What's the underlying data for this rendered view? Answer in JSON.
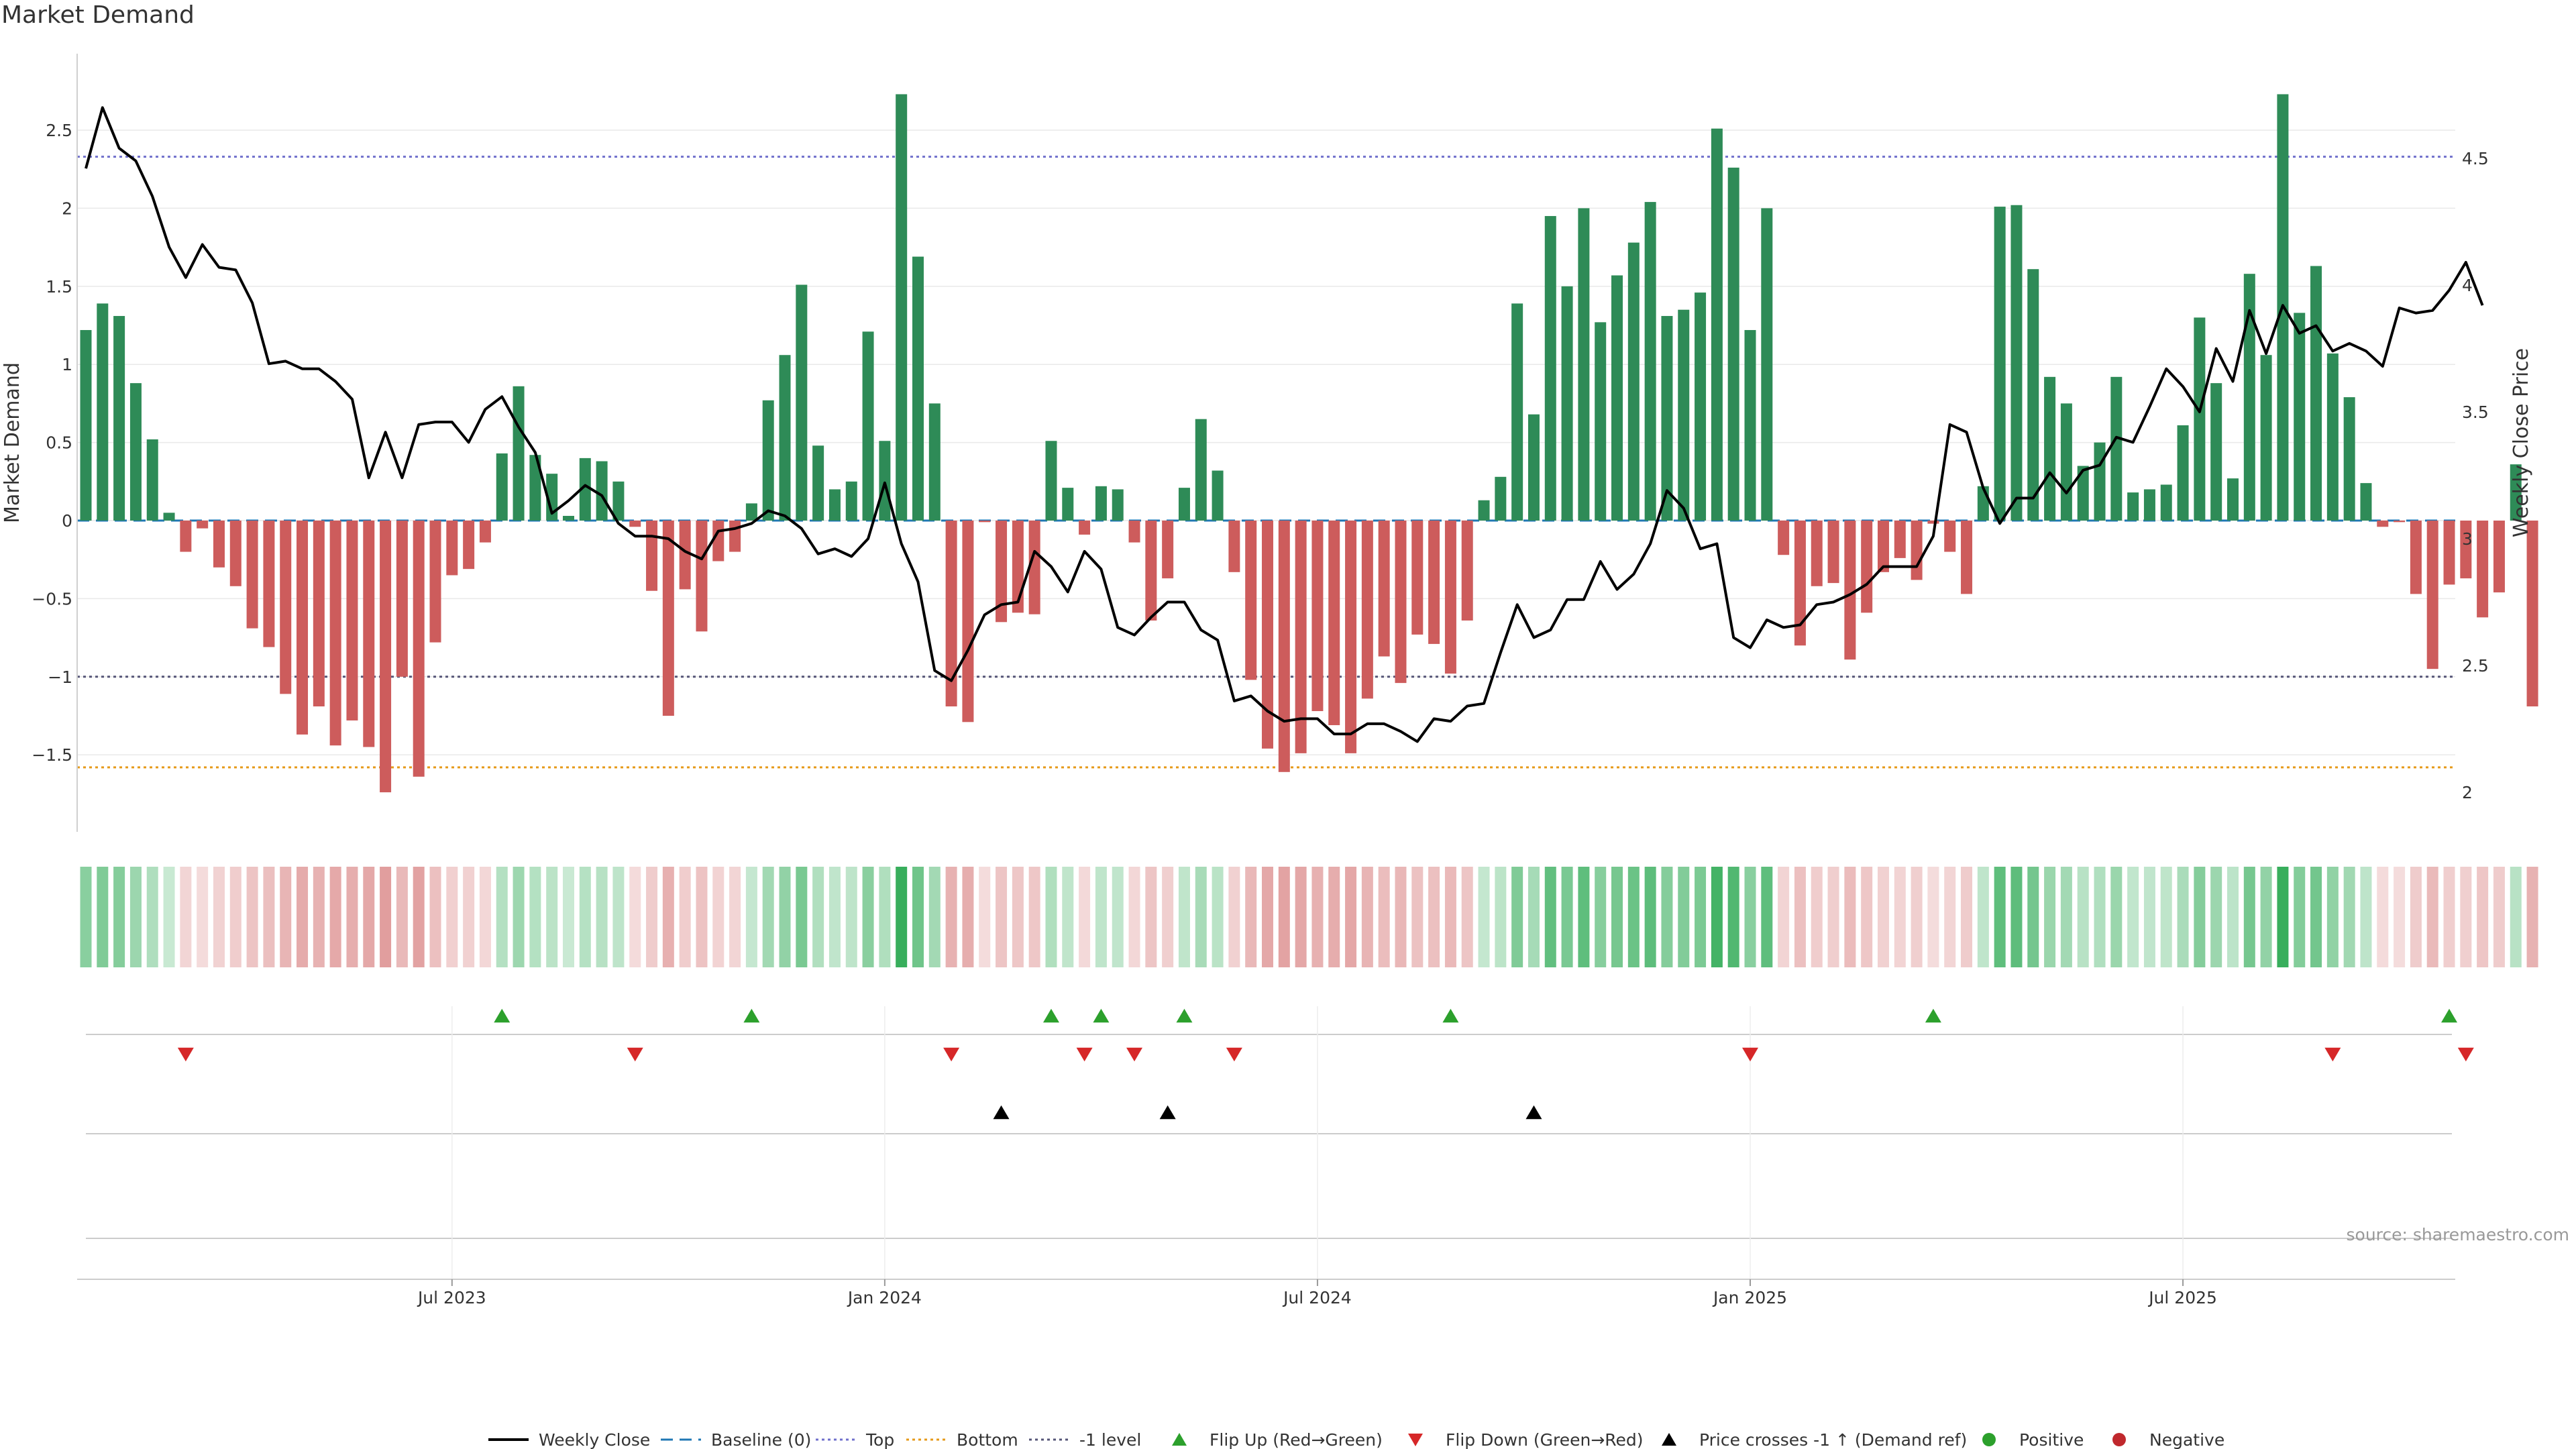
{
  "title": "Market Demand",
  "source_note": "source: sharemaestro.com",
  "colors": {
    "positive": "#2e8b57",
    "negative": "#cd5c5c",
    "price": "#000000",
    "top": "#7070cc",
    "bottom": "#e69a1a",
    "minus_one": "#555577",
    "baseline": "#1f77b4",
    "flip_up": "#2ca02c",
    "flip_down": "#d62728",
    "cross": "#000000",
    "dot_pos": "#2ca02c",
    "dot_neg": "#c0282d"
  },
  "chart_data": {
    "type": "bar",
    "title": "Market Demand",
    "ylabel": "Market Demand",
    "y2label": "Weekly Close Price",
    "ylim": [
      -2.0,
      3.0
    ],
    "y2lim": [
      1.9,
      4.9
    ],
    "yticks": [
      "2.5",
      "2",
      "1.5",
      "1",
      "0.5",
      "0",
      "−0.5",
      "−1",
      "−1.5"
    ],
    "ytick_values": [
      2.5,
      2,
      1.5,
      1,
      0.5,
      0,
      -0.5,
      -1,
      -1.5
    ],
    "y2ticks": [
      "4.5",
      "4",
      "3.5",
      "3",
      "2.5",
      "2"
    ],
    "y2tick_values": [
      4.5,
      4,
      3.5,
      3,
      2.5,
      2
    ],
    "xticks": [
      "Jul 2023",
      "Jan 2024",
      "Jul 2024",
      "Jan 2025",
      "Jul 2025"
    ],
    "xtick_weeks": [
      22,
      48,
      74,
      100,
      126
    ],
    "reference_lines": {
      "top": 2.33,
      "bottom": -1.58,
      "minus_one": -1.0,
      "baseline": 0
    },
    "series": [
      {
        "name": "Market Demand",
        "values": [
          1.22,
          1.39,
          1.31,
          0.88,
          0.52,
          0.05,
          -0.2,
          -0.05,
          -0.3,
          -0.42,
          -0.69,
          -0.81,
          -1.11,
          -1.37,
          -1.19,
          -1.44,
          -1.28,
          -1.45,
          -1.74,
          -1.0,
          -1.64,
          -0.78,
          -0.35,
          -0.31,
          -0.14,
          0.43,
          0.86,
          0.42,
          0.3,
          0.03,
          0.4,
          0.38,
          0.25,
          -0.04,
          -0.45,
          -1.25,
          -0.44,
          -0.71,
          -0.26,
          -0.2,
          0.11,
          0.77,
          1.06,
          1.51,
          0.48,
          0.2,
          0.25,
          1.21,
          0.51,
          2.73,
          1.69,
          0.75,
          -1.19,
          -1.29,
          -0.01,
          -0.65,
          -0.59,
          -0.6,
          0.51,
          0.21,
          -0.09,
          0.22,
          0.2,
          -0.14,
          -0.64,
          -0.37,
          0.21,
          0.65,
          0.32,
          -0.33,
          -1.02,
          -1.46,
          -1.61,
          -1.49,
          -1.22,
          -1.31,
          -1.49,
          -1.14,
          -0.87,
          -1.04,
          -0.73,
          -0.79,
          -0.98,
          -0.64,
          0.13,
          0.28,
          1.39,
          0.68,
          1.95,
          1.5,
          2.0,
          1.27,
          1.57,
          1.78,
          2.04,
          1.31,
          1.35,
          1.46,
          2.51,
          2.26,
          1.22,
          2.0,
          -0.22,
          -0.8,
          -0.42,
          -0.4,
          -0.89,
          -0.59,
          -0.33,
          -0.24,
          -0.38,
          -0.02,
          -0.2,
          -0.47,
          0.22,
          2.01,
          2.02,
          1.61,
          0.92,
          0.75,
          0.35,
          0.5,
          0.92,
          0.18,
          0.2,
          0.23,
          0.61,
          1.3,
          0.88,
          0.27,
          1.58,
          1.06,
          2.73,
          1.33,
          1.63,
          1.07,
          0.79,
          0.24,
          -0.04,
          -0.01,
          -0.47,
          -0.95,
          -0.41,
          -0.37,
          -0.62,
          -0.46,
          0.36,
          -1.19
        ]
      },
      {
        "name": "Weekly Close",
        "values": [
          4.46,
          4.7,
          4.54,
          4.49,
          4.35,
          4.15,
          4.03,
          4.16,
          4.07,
          4.06,
          3.93,
          3.69,
          3.7,
          3.67,
          3.67,
          3.62,
          3.55,
          3.24,
          3.42,
          3.24,
          3.45,
          3.46,
          3.46,
          3.38,
          3.51,
          3.56,
          3.44,
          3.34,
          3.1,
          3.15,
          3.21,
          3.17,
          3.06,
          3.01,
          3.01,
          3.0,
          2.95,
          2.92,
          3.03,
          3.04,
          3.06,
          3.11,
          3.09,
          3.04,
          2.94,
          2.96,
          2.93,
          3.0,
          3.22,
          2.98,
          2.83,
          2.48,
          2.44,
          2.56,
          2.7,
          2.74,
          2.75,
          2.95,
          2.89,
          2.79,
          2.95,
          2.88,
          2.65,
          2.62,
          2.69,
          2.75,
          2.75,
          2.64,
          2.6,
          2.36,
          2.38,
          2.32,
          2.28,
          2.29,
          2.29,
          2.23,
          2.23,
          2.27,
          2.27,
          2.24,
          2.2,
          2.29,
          2.28,
          2.34,
          2.35,
          2.55,
          2.74,
          2.61,
          2.64,
          2.76,
          2.76,
          2.91,
          2.8,
          2.86,
          2.98,
          3.19,
          3.12,
          2.96,
          2.98,
          2.61,
          2.57,
          2.68,
          2.65,
          2.66,
          2.74,
          2.75,
          2.78,
          2.82,
          2.89,
          2.89,
          2.89,
          3.01,
          3.45,
          3.42,
          3.2,
          3.06,
          3.16,
          3.16,
          3.26,
          3.18,
          3.27,
          3.29,
          3.4,
          3.38,
          3.52,
          3.67,
          3.6,
          3.5,
          3.75,
          3.62,
          3.9,
          3.73,
          3.92,
          3.81,
          3.84,
          3.74,
          3.77,
          3.74,
          3.68,
          3.91,
          3.89,
          3.9,
          3.98,
          4.09,
          3.92
        ]
      }
    ]
  },
  "event_rows": {
    "flip_up_weeks": [
      25,
      40,
      58,
      61,
      66,
      82,
      111,
      142
    ],
    "flip_down_weeks": [
      6,
      33,
      52,
      60,
      63,
      69,
      100,
      135,
      143
    ],
    "cross_weeks": [
      55,
      65,
      87
    ]
  },
  "legend": [
    {
      "label": "Weekly Close",
      "kind": "line",
      "color": "#000000"
    },
    {
      "label": "Baseline (0)",
      "kind": "dash",
      "color": "#1f77b4"
    },
    {
      "label": "Top",
      "kind": "dot",
      "color": "#7070cc"
    },
    {
      "label": "Bottom",
      "kind": "dot",
      "color": "#e69a1a"
    },
    {
      "label": "-1 level",
      "kind": "dot",
      "color": "#555577"
    },
    {
      "label": "Flip Up (Red→Green)",
      "kind": "tri-up",
      "color": "#2ca02c"
    },
    {
      "label": "Flip Down (Green→Red)",
      "kind": "tri-down",
      "color": "#d62728"
    },
    {
      "label": "Price crosses -1 ↑ (Demand ref)",
      "kind": "tri-up",
      "color": "#000000"
    },
    {
      "label": "Positive",
      "kind": "circle",
      "color": "#2ca02c"
    },
    {
      "label": "Negative",
      "kind": "circle",
      "color": "#c0282d"
    }
  ]
}
